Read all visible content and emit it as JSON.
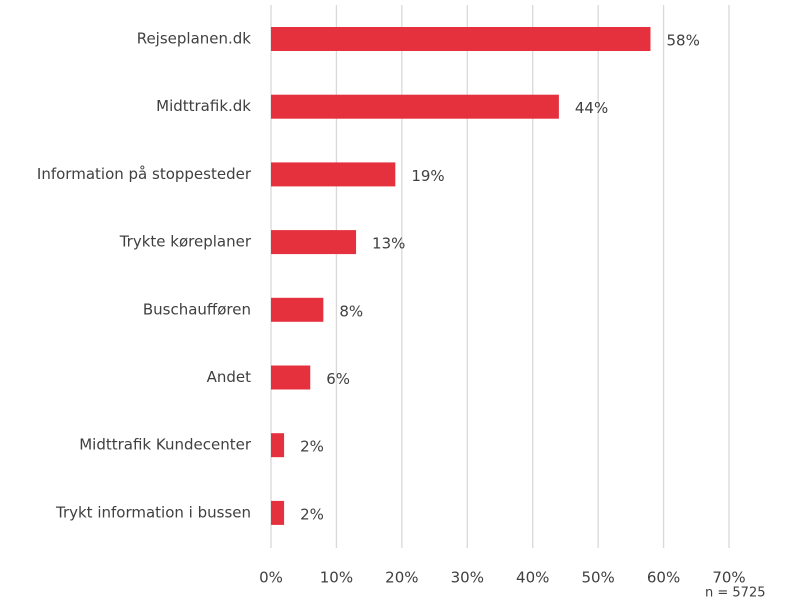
{
  "chart_data": {
    "type": "bar",
    "orientation": "horizontal",
    "categories": [
      "Rejseplanen.dk",
      "Midttrafik.dk",
      "Information på stoppesteder",
      "Trykte køreplaner",
      "Buschaufføren",
      "Andet",
      "Midttrafik Kundecenter",
      "Trykt information i bussen"
    ],
    "values": [
      58,
      44,
      19,
      13,
      8,
      6,
      2,
      2
    ],
    "value_labels": [
      "58%",
      "44%",
      "19%",
      "13%",
      "8%",
      "6%",
      "2%",
      "2%"
    ],
    "color": "#e5313e",
    "xlim": [
      0,
      70
    ],
    "xticks": [
      {
        "value": 0,
        "label": "0%"
      },
      {
        "value": 10,
        "label": "10%"
      },
      {
        "value": 20,
        "label": "20%"
      },
      {
        "value": 30,
        "label": "30%"
      },
      {
        "value": 40,
        "label": "40%"
      },
      {
        "value": 50,
        "label": "50%"
      },
      {
        "value": 60,
        "label": "60%"
      },
      {
        "value": 70,
        "label": "70%"
      }
    ],
    "grid": true,
    "annotation": "n = 5725"
  }
}
